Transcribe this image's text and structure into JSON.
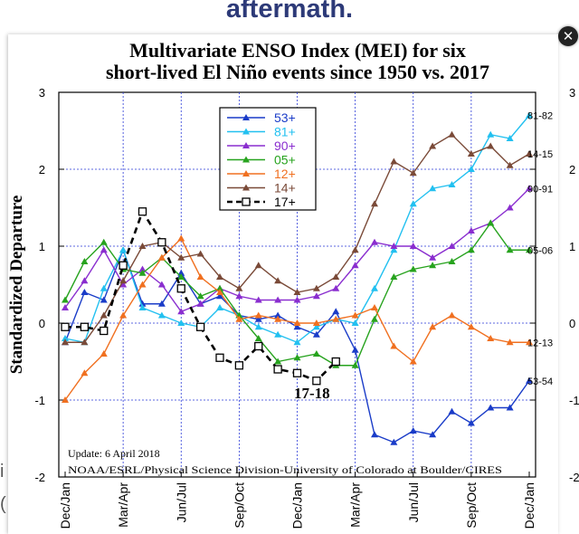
{
  "page": {
    "heading": "aftermath.",
    "close_icon": "close-icon",
    "side_text_1": "i",
    "side_text_2": "("
  },
  "chart_data": {
    "type": "line",
    "title_line1": "Multivariate ENSO Index (MEI) for six",
    "title_line2": "short-lived El Niño events since 1950 vs. 2017",
    "ylabel": "Standardized Departure",
    "xlabel": "",
    "ylim": [
      -2,
      3
    ],
    "yticks": [
      "3",
      "2",
      "1",
      "0",
      "-1",
      "-2"
    ],
    "right_yticks": [
      "3",
      "2",
      "1",
      "0",
      "-1",
      "-2"
    ],
    "xtick_labels": [
      "Dec/Jan",
      "Mar/Apr",
      "Jun/Jul",
      "Sep/Oct",
      "Dec/Jan",
      "Mar/Apr",
      "Jun/Jul",
      "Sep/Oct",
      "Dec/Jan"
    ],
    "xtick_positions": [
      0,
      3,
      6,
      9,
      12,
      15,
      18,
      21,
      24
    ],
    "grid": true,
    "legend_position": "top-center",
    "series": [
      {
        "name": "53+",
        "color": "#1a3cc8",
        "marker": "triangle",
        "end_label": "53-54",
        "values": [
          -0.25,
          0.4,
          0.3,
          0.95,
          0.25,
          0.25,
          0.65,
          0.25,
          0.35,
          0.1,
          0.05,
          0.1,
          -0.05,
          -0.15,
          0.15,
          -0.35,
          -1.45,
          -1.55,
          -1.4,
          -1.45,
          -1.15,
          -1.3,
          -1.1,
          -1.1,
          -0.75
        ]
      },
      {
        "name": "81+",
        "color": "#22c0f0",
        "marker": "triangle",
        "end_label": "81-82",
        "values": [
          -0.2,
          -0.25,
          0.45,
          0.95,
          0.2,
          0.1,
          0.0,
          -0.05,
          0.2,
          0.1,
          -0.05,
          -0.15,
          -0.25,
          -0.05,
          0.05,
          0.0,
          0.45,
          0.95,
          1.55,
          1.75,
          1.8,
          2.0,
          2.45,
          2.4,
          2.7
        ]
      },
      {
        "name": "90+",
        "color": "#8a2ecf",
        "marker": "triangle",
        "end_label": "90-91",
        "values": [
          0.2,
          0.55,
          0.95,
          0.5,
          0.7,
          0.5,
          0.15,
          0.25,
          0.45,
          0.35,
          0.3,
          0.3,
          0.3,
          0.35,
          0.45,
          0.75,
          1.05,
          1.0,
          1.0,
          0.85,
          1.0,
          1.2,
          1.3,
          1.5,
          1.75
        ]
      },
      {
        "name": "05+",
        "color": "#27a31e",
        "marker": "triangle",
        "end_label": "05-06",
        "values": [
          0.3,
          0.8,
          1.05,
          0.7,
          0.65,
          0.85,
          0.6,
          0.35,
          0.45,
          0.1,
          -0.2,
          -0.5,
          -0.45,
          -0.4,
          -0.55,
          -0.55,
          0.05,
          0.6,
          0.7,
          0.75,
          0.8,
          0.95,
          1.3,
          0.95,
          0.95
        ]
      },
      {
        "name": "12+",
        "color": "#f07020",
        "marker": "triangle",
        "end_label": "12-13",
        "values": [
          -1.0,
          -0.65,
          -0.4,
          0.1,
          0.5,
          0.85,
          1.1,
          0.6,
          0.4,
          0.05,
          0.1,
          0.05,
          0.0,
          0.0,
          0.05,
          0.1,
          0.2,
          -0.3,
          -0.5,
          -0.05,
          0.1,
          -0.05,
          -0.2,
          -0.25,
          -0.25
        ]
      },
      {
        "name": "14+",
        "color": "#7a4a38",
        "marker": "triangle",
        "end_label": "14-15",
        "values": [
          -0.25,
          -0.25,
          0.1,
          0.55,
          1.0,
          1.05,
          0.85,
          0.9,
          0.6,
          0.45,
          0.75,
          0.55,
          0.4,
          0.45,
          0.6,
          0.95,
          1.55,
          2.1,
          1.95,
          2.3,
          2.45,
          2.2,
          2.3,
          2.05,
          2.2
        ]
      },
      {
        "name": "17+",
        "color": "#000000",
        "marker": "square",
        "dashed": true,
        "end_label": "",
        "values": [
          -0.05,
          -0.05,
          -0.1,
          0.75,
          1.45,
          1.05,
          0.45,
          -0.05,
          -0.45,
          -0.55,
          -0.3,
          -0.6,
          -0.65,
          -0.75,
          -0.5
        ]
      }
    ],
    "annotations": {
      "event_label": "17-18",
      "update_text": "Update: 6 April 2018",
      "source_text": "NOAA/ESRL/Physical Science Division-University of Colorado at Boulder/CIRES"
    }
  }
}
